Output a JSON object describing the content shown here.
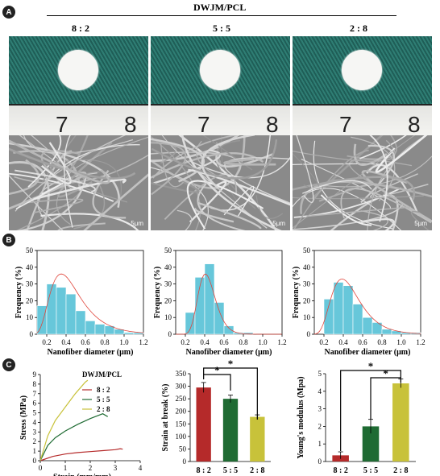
{
  "panels": {
    "a": "A",
    "b": "B",
    "c": "C"
  },
  "header": {
    "title": "DWJM/PCL",
    "ratios": [
      "8 : 2",
      "5 : 5",
      "2 : 8"
    ]
  },
  "ruler_numbers": [
    "7",
    "8"
  ],
  "sem_scale": "5μm",
  "histograms": {
    "ylabel": "Frequency (%)",
    "xlabel": "Nanofiber diameter (μm)",
    "xticks": [
      "0.2",
      "0.4",
      "0.6",
      "0.8",
      "1.0",
      "1.2"
    ],
    "yticks": [
      "0",
      "10",
      "20",
      "30",
      "40",
      "50"
    ]
  },
  "stress_strain": {
    "legend_title": "DWJM/PCL",
    "xlabel": "Strain (mm/mm)",
    "ylabel": "Stress (MPa)",
    "xticks": [
      "0",
      "1",
      "2",
      "3",
      "4"
    ],
    "yticks": [
      "0",
      "1",
      "2",
      "3",
      "4",
      "5",
      "6",
      "7",
      "8",
      "9"
    ]
  },
  "bar_strain": {
    "ylabel": "Strain at break (%)",
    "yticks": [
      "0",
      "50",
      "100",
      "150",
      "200",
      "250",
      "300",
      "350"
    ]
  },
  "bar_modulus": {
    "ylabel": "Young's modulus (Mpa)",
    "yticks": [
      "0",
      "1",
      "2",
      "3",
      "4",
      "5"
    ]
  },
  "sig": "*",
  "colors": {
    "c82": "#b52a2a",
    "c55": "#1f6b33",
    "c28": "#c8c23a",
    "hist": "#67c7da",
    "fit": "#e0463c"
  },
  "chart_data": [
    {
      "type": "bar",
      "id": "hist-8-2",
      "xlim": [
        0.1,
        1.2
      ],
      "ylim": [
        0,
        50
      ],
      "x": [
        0.1,
        0.2,
        0.3,
        0.4,
        0.5,
        0.6,
        0.7,
        0.8,
        0.9,
        1.0,
        1.1
      ],
      "values": [
        17,
        30,
        28,
        24,
        14,
        8,
        6,
        5,
        3,
        1,
        1
      ]
    },
    {
      "type": "bar",
      "id": "hist-5-5",
      "xlim": [
        0.1,
        1.2
      ],
      "ylim": [
        0,
        50
      ],
      "x": [
        0.2,
        0.3,
        0.4,
        0.5,
        0.6,
        0.7,
        0.8
      ],
      "values": [
        13,
        34,
        42,
        19,
        5,
        1,
        1
      ]
    },
    {
      "type": "bar",
      "id": "hist-2-8",
      "xlim": [
        0.1,
        1.2
      ],
      "ylim": [
        0,
        50
      ],
      "x": [
        0.2,
        0.3,
        0.4,
        0.5,
        0.6,
        0.7,
        0.8,
        0.9,
        1.0,
        1.1
      ],
      "values": [
        21,
        31,
        29,
        18,
        10,
        7,
        3,
        2,
        1,
        1
      ]
    },
    {
      "type": "line",
      "id": "stress-strain",
      "xlim": [
        0,
        4
      ],
      "ylim": [
        0,
        9
      ],
      "series": [
        {
          "name": "8 : 2",
          "x": [
            0,
            0.5,
            1,
            1.5,
            2,
            2.5,
            3,
            3.2,
            3.3
          ],
          "y": [
            0,
            0.45,
            0.7,
            0.85,
            0.95,
            1.05,
            1.15,
            1.25,
            1.2
          ]
        },
        {
          "name": "5 : 5",
          "x": [
            0,
            0.3,
            0.6,
            1,
            1.5,
            2,
            2.5,
            2.7
          ],
          "y": [
            0,
            1.6,
            2.4,
            3.1,
            3.8,
            4.4,
            4.9,
            4.6
          ]
        },
        {
          "name": "2 : 8",
          "x": [
            0,
            0.3,
            0.6,
            1,
            1.4,
            1.8,
            1.9
          ],
          "y": [
            0,
            2.6,
            4.2,
            5.6,
            7.0,
            8.2,
            8.4
          ]
        }
      ]
    },
    {
      "type": "bar",
      "id": "strain-break",
      "categories": [
        "8 : 2",
        "5 : 5",
        "2 : 8"
      ],
      "values": [
        295,
        250,
        178
      ],
      "errors": [
        20,
        15,
        8
      ],
      "ylim": [
        0,
        350
      ]
    },
    {
      "type": "bar",
      "id": "youngs-modulus",
      "categories": [
        "8 : 2",
        "5 : 5",
        "2 : 8"
      ],
      "values": [
        0.35,
        2.0,
        4.45
      ],
      "errors": [
        0.2,
        0.4,
        0.25
      ],
      "ylim": [
        0,
        5
      ]
    }
  ]
}
